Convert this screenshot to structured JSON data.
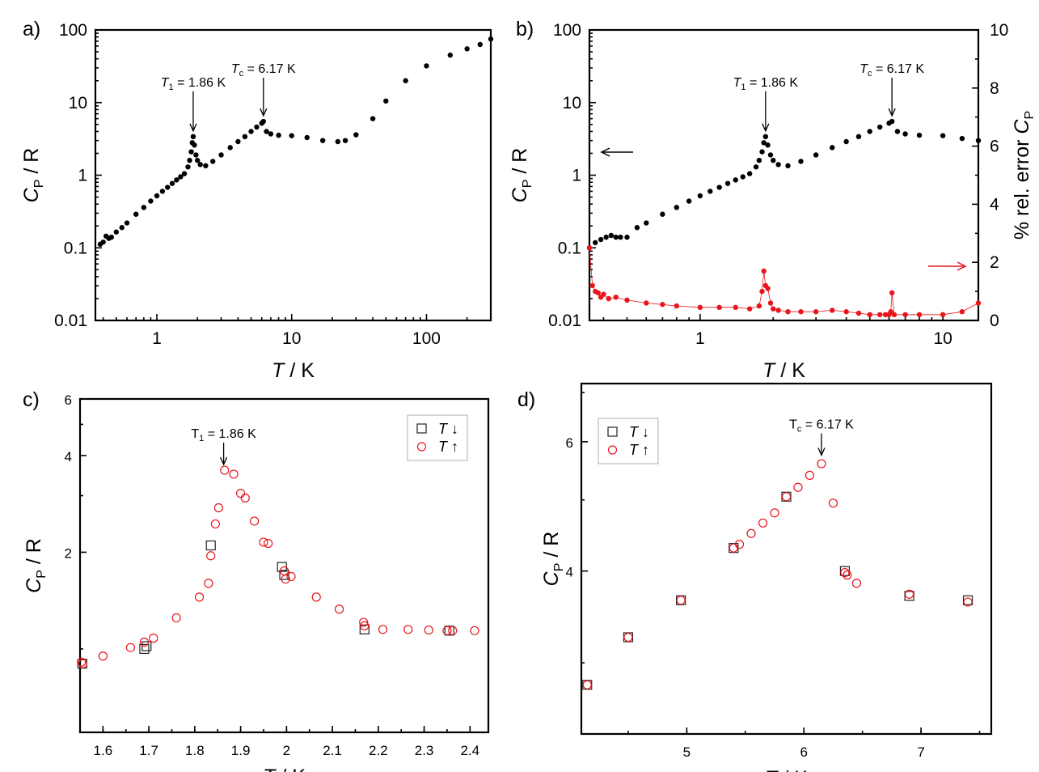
{
  "colors": {
    "black": "#000000",
    "red": "#e8151c"
  },
  "panels": {
    "a": {
      "label": "a)"
    },
    "b": {
      "label": "b)"
    },
    "c": {
      "label": "c)"
    },
    "d": {
      "label": "d)"
    }
  },
  "chart_data": [
    {
      "id": "a",
      "type": "scatter",
      "xscale": "log",
      "yscale": "log",
      "xlim": [
        0.35,
        300
      ],
      "ylim": [
        0.01,
        100
      ],
      "xlabel": "T / K",
      "ylabel": "CP / R",
      "xticks": [
        1,
        10,
        100
      ],
      "xticklabels": [
        "1",
        "10",
        "100"
      ],
      "yticks": [
        0.01,
        0.1,
        1,
        10,
        100
      ],
      "yticklabels": [
        "0.01",
        "0.1",
        "1",
        "10",
        "100"
      ],
      "annotations": [
        {
          "sym": "T",
          "sub": "1",
          "rest": " = 1.86 K",
          "x": 1.86,
          "y": 3.4
        },
        {
          "sym": "T",
          "sub": "c",
          "rest": " = 6.17 K",
          "x": 6.17,
          "y": 5.5
        }
      ],
      "series": [
        {
          "name": "Cp",
          "color": "#000000",
          "marker": "dot",
          "x": [
            0.38,
            0.4,
            0.42,
            0.44,
            0.46,
            0.5,
            0.55,
            0.6,
            0.7,
            0.8,
            0.9,
            1.0,
            1.1,
            1.2,
            1.3,
            1.4,
            1.5,
            1.6,
            1.7,
            1.75,
            1.8,
            1.83,
            1.86,
            1.9,
            1.95,
            2.0,
            2.1,
            2.3,
            2.6,
            3.0,
            3.5,
            4.0,
            4.5,
            5.0,
            5.5,
            6.0,
            6.17,
            6.5,
            7.0,
            8.0,
            10.0,
            13.0,
            17.0,
            22.0,
            25.0,
            30.0,
            40.0,
            50.0,
            70.0,
            100.0,
            150.0,
            200.0,
            250.0,
            300.0
          ],
          "y": [
            0.112,
            0.12,
            0.145,
            0.135,
            0.14,
            0.165,
            0.19,
            0.22,
            0.29,
            0.36,
            0.44,
            0.52,
            0.6,
            0.68,
            0.77,
            0.86,
            0.95,
            1.05,
            1.3,
            1.6,
            2.1,
            2.8,
            3.4,
            2.6,
            1.9,
            1.6,
            1.4,
            1.35,
            1.55,
            1.9,
            2.4,
            2.9,
            3.4,
            4.0,
            4.6,
            5.2,
            5.5,
            4.0,
            3.7,
            3.55,
            3.5,
            3.3,
            3.0,
            2.9,
            3.0,
            3.6,
            6.0,
            10.5,
            20.0,
            32.0,
            45.0,
            55.0,
            63.0,
            75.0
          ]
        }
      ]
    },
    {
      "id": "b",
      "type": "scatter",
      "xscale": "log",
      "yscale": "log",
      "xlim": [
        0.35,
        14
      ],
      "ylim": [
        0.01,
        100
      ],
      "y2lim": [
        0,
        10
      ],
      "xlabel": "T / K",
      "ylabel": "CP / R",
      "y2label": "% rel. error CP",
      "xticks": [
        1,
        10
      ],
      "xticklabels": [
        "1",
        "10"
      ],
      "yticks": [
        0.01,
        0.1,
        1,
        10,
        100
      ],
      "yticklabels": [
        "0.01",
        "0.1",
        "1",
        "10",
        "100"
      ],
      "y2ticks": [
        0,
        2,
        4,
        6,
        8,
        10
      ],
      "y2ticklabels": [
        "0",
        "2",
        "4",
        "6",
        "8",
        "10"
      ],
      "annotations": [
        {
          "sym": "T",
          "sub": "1",
          "rest": " = 1.86 K",
          "x": 1.86,
          "y": 3.4
        },
        {
          "sym": "T",
          "sub": "c",
          "rest": " = 6.17 K",
          "x": 6.17,
          "y": 5.5
        }
      ],
      "series": [
        {
          "name": "Cp",
          "axis": "left",
          "color": "#000000",
          "marker": "dot",
          "x": [
            0.35,
            0.37,
            0.39,
            0.41,
            0.43,
            0.45,
            0.47,
            0.5,
            0.55,
            0.6,
            0.7,
            0.8,
            0.9,
            1.0,
            1.1,
            1.2,
            1.3,
            1.4,
            1.5,
            1.6,
            1.7,
            1.75,
            1.8,
            1.83,
            1.86,
            1.9,
            1.95,
            2.0,
            2.1,
            2.3,
            2.6,
            3.0,
            3.5,
            4.0,
            4.5,
            5.0,
            5.5,
            6.0,
            6.17,
            6.5,
            7.0,
            8.0,
            10.0,
            12.0,
            14.0
          ],
          "y": [
            0.1,
            0.118,
            0.13,
            0.14,
            0.148,
            0.14,
            0.14,
            0.14,
            0.19,
            0.22,
            0.29,
            0.36,
            0.44,
            0.52,
            0.6,
            0.68,
            0.77,
            0.86,
            0.95,
            1.05,
            1.3,
            1.6,
            2.1,
            2.8,
            3.4,
            2.6,
            1.9,
            1.6,
            1.4,
            1.35,
            1.55,
            1.9,
            2.4,
            2.9,
            3.4,
            4.0,
            4.6,
            5.2,
            5.5,
            4.0,
            3.7,
            3.55,
            3.5,
            3.2,
            3.0
          ]
        },
        {
          "name": "% rel. error",
          "axis": "right",
          "color": "#e8151c",
          "marker": "dot",
          "connected": true,
          "x": [
            0.35,
            0.36,
            0.37,
            0.38,
            0.39,
            0.4,
            0.42,
            0.45,
            0.5,
            0.6,
            0.7,
            0.8,
            1.0,
            1.2,
            1.4,
            1.6,
            1.75,
            1.8,
            1.83,
            1.86,
            1.9,
            1.95,
            2.0,
            2.1,
            2.3,
            2.6,
            3.0,
            3.5,
            4.0,
            4.5,
            5.0,
            5.5,
            5.8,
            6.0,
            6.1,
            6.17,
            6.3,
            7.0,
            8.0,
            10.0,
            12.0,
            14.0
          ],
          "y": [
            2.5,
            1.2,
            1.0,
            0.95,
            0.8,
            0.9,
            0.75,
            0.8,
            0.7,
            0.6,
            0.55,
            0.5,
            0.45,
            0.45,
            0.45,
            0.4,
            0.5,
            1.0,
            1.7,
            1.2,
            1.1,
            0.6,
            0.4,
            0.35,
            0.3,
            0.3,
            0.3,
            0.35,
            0.3,
            0.25,
            0.2,
            0.2,
            0.2,
            0.2,
            0.3,
            0.95,
            0.2,
            0.2,
            0.2,
            0.2,
            0.3,
            0.6
          ]
        }
      ],
      "arrows": [
        {
          "direction": "left",
          "target": "left axis"
        },
        {
          "direction": "right",
          "target": "right axis"
        }
      ]
    },
    {
      "id": "c",
      "type": "scatter",
      "xscale": "linear",
      "yscale": "log",
      "xlim": [
        1.55,
        2.44
      ],
      "ylim": [
        0.55,
        6
      ],
      "xlabel": "T / K",
      "ylabel": "CP / R",
      "xticks": [
        1.6,
        1.7,
        1.8,
        1.9,
        2.0,
        2.1,
        2.2,
        2.3,
        2.4
      ],
      "xticklabels": [
        "1.6",
        "1.7",
        "1.8",
        "1.9",
        "2",
        "2.1",
        "2.2",
        "2.3",
        "2.4"
      ],
      "yticks": [
        2,
        4,
        6
      ],
      "yticklabels": [
        "2",
        "4",
        "6"
      ],
      "annotations": [
        {
          "sym": "T",
          "sub": "1",
          "rest": " = 1.86 K",
          "x": 1.863,
          "y": 3.6,
          "upright": true
        }
      ],
      "legend": {
        "location": "top-right",
        "entries": [
          {
            "sym": "T",
            "arrow": "↓"
          },
          {
            "sym": "T",
            "arrow": "↑"
          }
        ]
      },
      "series": [
        {
          "name": "T down",
          "marker": "square",
          "color": "#222222",
          "x": [
            1.555,
            1.69,
            1.695,
            1.835,
            1.99,
            1.995,
            2.17,
            2.355
          ],
          "y": [
            0.9,
            1.0,
            1.02,
            2.1,
            1.8,
            1.7,
            1.15,
            1.14
          ]
        },
        {
          "name": "T up",
          "marker": "circle",
          "color": "#e8151c",
          "x": [
            1.553,
            1.556,
            1.6,
            1.66,
            1.69,
            1.71,
            1.76,
            1.81,
            1.83,
            1.835,
            1.845,
            1.852,
            1.865,
            1.885,
            1.9,
            1.91,
            1.93,
            1.95,
            1.96,
            1.995,
            1.998,
            2.01,
            2.065,
            2.115,
            2.168,
            2.17,
            2.21,
            2.265,
            2.31,
            2.35,
            2.362,
            2.41
          ],
          "y": [
            0.91,
            0.9,
            0.95,
            1.01,
            1.05,
            1.08,
            1.25,
            1.45,
            1.6,
            1.95,
            2.45,
            2.75,
            3.6,
            3.5,
            3.05,
            2.95,
            2.5,
            2.15,
            2.13,
            1.75,
            1.65,
            1.68,
            1.45,
            1.33,
            1.21,
            1.18,
            1.15,
            1.15,
            1.145,
            1.14,
            1.14,
            1.14
          ]
        }
      ]
    },
    {
      "id": "d",
      "type": "scatter",
      "xscale": "linear",
      "yscale": "log",
      "xlim": [
        4.1,
        7.6
      ],
      "ylim": [
        2.4,
        7.2
      ],
      "xlabel": "T / K",
      "ylabel": "CP / R",
      "xticks": [
        5,
        6,
        7
      ],
      "xticklabels": [
        "5",
        "6",
        "7"
      ],
      "yticks": [
        4,
        6
      ],
      "yticklabels": [
        "4",
        "6"
      ],
      "annotations": [
        {
          "sym": "T",
          "sub": "c",
          "rest": " = 6.17 K",
          "x": 6.15,
          "y": 5.65,
          "upright": true
        }
      ],
      "legend": {
        "location": "top-left",
        "entries": [
          {
            "sym": "T",
            "arrow": "↓"
          },
          {
            "sym": "T",
            "arrow": "↑"
          }
        ]
      },
      "series": [
        {
          "name": "T down",
          "marker": "square",
          "color": "#222222",
          "x": [
            4.15,
            4.5,
            4.95,
            5.4,
            5.85,
            6.35,
            6.9,
            7.4
          ],
          "y": [
            2.8,
            3.25,
            3.65,
            4.3,
            5.05,
            4.0,
            3.7,
            3.65
          ]
        },
        {
          "name": "T up",
          "marker": "circle",
          "color": "#e8151c",
          "x": [
            4.15,
            4.5,
            4.95,
            5.4,
            5.45,
            5.55,
            5.65,
            5.75,
            5.85,
            5.95,
            6.05,
            6.15,
            6.25,
            6.35,
            6.37,
            6.45,
            6.9,
            7.4
          ],
          "y": [
            2.8,
            3.25,
            3.65,
            4.3,
            4.35,
            4.5,
            4.65,
            4.8,
            5.05,
            5.2,
            5.4,
            5.6,
            4.95,
            3.98,
            3.95,
            3.85,
            3.72,
            3.63
          ]
        }
      ]
    }
  ]
}
